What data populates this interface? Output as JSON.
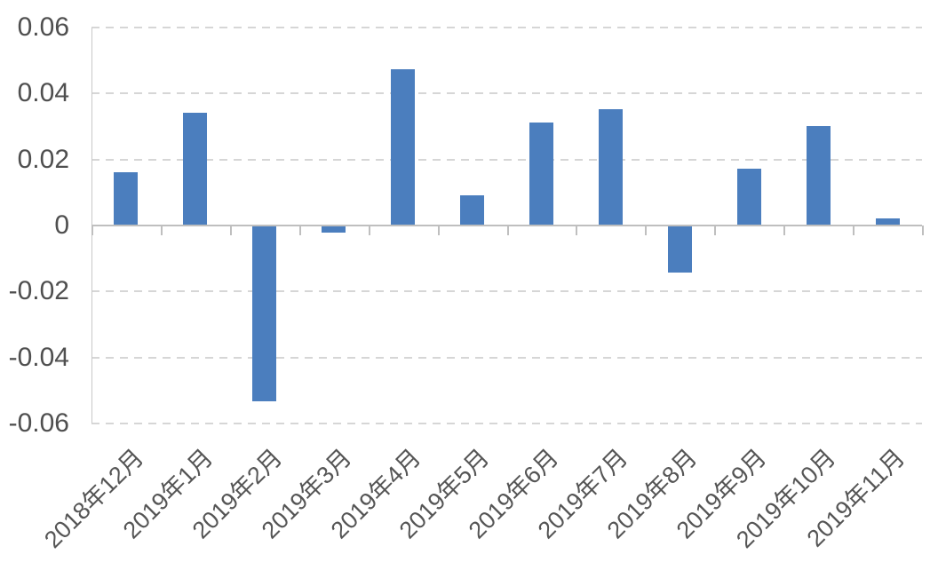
{
  "chart_data": {
    "type": "bar",
    "title": "",
    "xlabel": "",
    "ylabel": "",
    "categories": [
      "2018年12月",
      "2019年1月",
      "2019年2月",
      "2019年3月",
      "2019年4月",
      "2019年5月",
      "2019年6月",
      "2019年7月",
      "2019年8月",
      "2019年9月",
      "2019年10月",
      "2019年11月"
    ],
    "values": [
      0.016,
      0.034,
      -0.053,
      -0.002,
      0.047,
      0.009,
      0.031,
      0.035,
      -0.014,
      0.017,
      0.03,
      0.002
    ],
    "series_name": "",
    "ylim": [
      -0.06,
      0.06
    ],
    "yticks": [
      0.06,
      0.04,
      0.02,
      0,
      -0.02,
      -0.04,
      -0.06
    ],
    "ytick_labels": [
      "0.06",
      "0.04",
      "0.02",
      "0",
      "-0.02",
      "-0.04",
      "-0.06"
    ],
    "grid": "horizontal-dashed",
    "legend": false,
    "x_label_rotation_deg": -45,
    "colors": {
      "bar": "#4b7ebe",
      "gridline": "#d6d6d6",
      "axis_line": "#bfbfbf",
      "tick_label": "#4f4f4f",
      "background": "#ffffff"
    }
  }
}
